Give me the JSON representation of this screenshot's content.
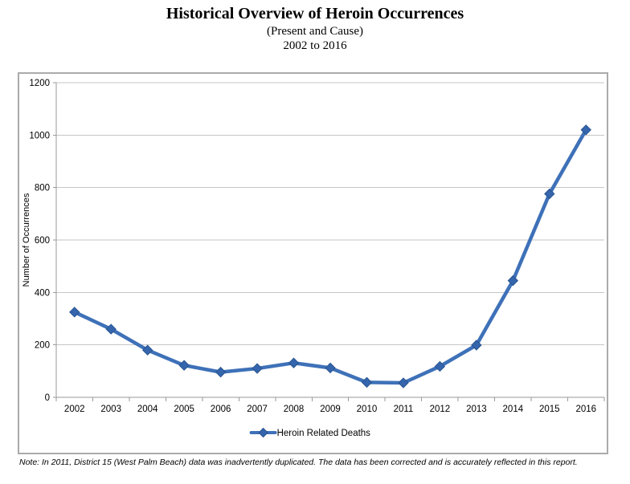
{
  "header": {
    "title": "Historical Overview of Heroin Occurrences",
    "subtitle1": "(Present and Cause)",
    "subtitle2": "2002 to 2016"
  },
  "chart_data": {
    "type": "line",
    "categories": [
      "2002",
      "2003",
      "2004",
      "2005",
      "2006",
      "2007",
      "2008",
      "2009",
      "2010",
      "2011",
      "2012",
      "2013",
      "2014",
      "2015",
      "2016"
    ],
    "series": [
      {
        "name": "Heroin Related Deaths",
        "values": [
          325,
          260,
          180,
          122,
          96,
          110,
          131,
          112,
          57,
          55,
          118,
          199,
          445,
          776,
          1020
        ]
      }
    ],
    "xlabel": "",
    "ylabel": "Number of Occurrences",
    "ylim": [
      0,
      1200
    ],
    "ytick_step": 200,
    "grid": true,
    "legend_position": "bottom",
    "marker": "diamond"
  },
  "note": "Note: In 2011, District 15 (West Palm Beach) data was inadvertently duplicated. The data has been corrected and is accurately reflected in this report.",
  "colors": {
    "series_line": "#3E71B8",
    "marker_fill": "#3465AD",
    "marker_stroke": "#2A5590",
    "gridline": "#C6C6C6",
    "axis": "#9A9A9A",
    "chart_border": "#ABABAB",
    "text": "#000000"
  }
}
